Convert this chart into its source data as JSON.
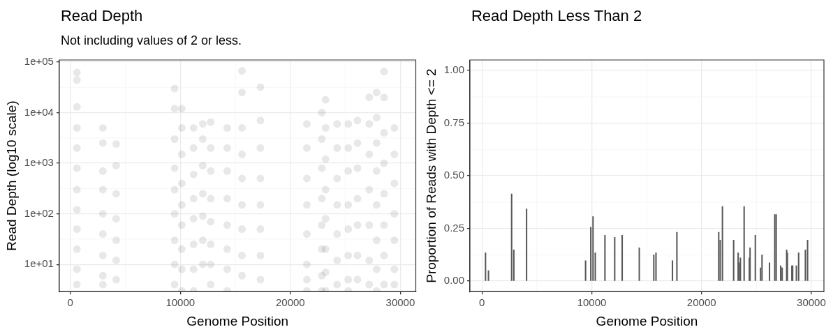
{
  "chart_data": [
    {
      "type": "scatter",
      "title": "Read Depth",
      "subtitle": "Not including values of 2 or less.",
      "xlabel": "Genome Position",
      "ylabel": "Read Depth (log10 scale)",
      "log": "y",
      "grid": true,
      "legend": false,
      "marker": "circle",
      "xlim": [
        -1000,
        31400
      ],
      "xticks": [
        0,
        10000,
        20000,
        30000
      ],
      "ylim": [
        2.9,
        110000
      ],
      "yticks": [
        {
          "value": 10,
          "label": "1e+01"
        },
        {
          "value": 100,
          "label": "1e+02"
        },
        {
          "value": 1000,
          "label": "1e+03"
        },
        {
          "value": 10000,
          "label": "1e+04"
        },
        {
          "value": 100000,
          "label": "1e+05"
        }
      ],
      "series": [
        {
          "color": "#000000",
          "x": [
            600,
            600,
            600,
            600,
            600,
            600,
            600,
            600,
            600,
            600,
            600,
            600,
            2960,
            2960,
            2960,
            2960,
            2960,
            2960,
            2960,
            2960,
            2960,
            4170,
            4170,
            4170,
            4170,
            4170,
            4170,
            4170,
            9480,
            9480,
            9480,
            9480,
            9480,
            9480,
            9480,
            9480,
            9480,
            10130,
            10130,
            10130,
            10130,
            10130,
            10130,
            10130,
            10130,
            10130,
            11200,
            11200,
            11200,
            11200,
            11200,
            11200,
            11200,
            11200,
            12040,
            12040,
            12040,
            12040,
            12040,
            12040,
            12040,
            12760,
            12760,
            12760,
            12760,
            12760,
            12760,
            12760,
            12760,
            14260,
            14260,
            14260,
            14260,
            14260,
            14260,
            14260,
            14260,
            15600,
            15600,
            15600,
            15600,
            15600,
            15600,
            15600,
            15600,
            15600,
            17280,
            17280,
            17280,
            17280,
            17280,
            17280,
            17280,
            17280,
            21500,
            21500,
            21500,
            21500,
            21500,
            21500,
            21500,
            21500,
            22860,
            22860,
            22860,
            22860,
            22860,
            22860,
            22860,
            22860,
            23200,
            23200,
            23200,
            23200,
            23200,
            23200,
            23200,
            23200,
            24250,
            24250,
            24250,
            24250,
            24250,
            24250,
            24250,
            25260,
            25260,
            25260,
            25260,
            25260,
            25260,
            25260,
            25260,
            26100,
            26100,
            26100,
            26100,
            26100,
            26100,
            26100,
            27170,
            27170,
            27170,
            27170,
            27170,
            27170,
            27170,
            27840,
            27840,
            27840,
            27840,
            27840,
            27840,
            27840,
            27840,
            28510,
            28510,
            28510,
            28510,
            28510,
            28510,
            28510,
            28510,
            29450,
            29450,
            29450,
            29450,
            29450,
            29450,
            29450
          ],
          "values": [
            62000,
            44000,
            13000,
            5000,
            2000,
            800,
            300,
            120,
            50,
            20,
            8,
            4,
            5000,
            2500,
            700,
            300,
            100,
            40,
            15,
            6,
            4,
            2400,
            900,
            250,
            80,
            30,
            12,
            5,
            30000,
            12000,
            3000,
            800,
            300,
            100,
            30,
            10,
            4,
            12000,
            5000,
            1500,
            400,
            150,
            60,
            20,
            8,
            3,
            5000,
            2000,
            600,
            200,
            80,
            25,
            8,
            3,
            6000,
            3000,
            900,
            250,
            90,
            30,
            10,
            6500,
            2000,
            700,
            200,
            70,
            25,
            10,
            4,
            5000,
            2000,
            700,
            200,
            60,
            20,
            8,
            3,
            67000,
            25000,
            5000,
            1500,
            500,
            150,
            50,
            15,
            6,
            32000,
            7000,
            2000,
            500,
            150,
            50,
            15,
            5,
            6000,
            2000,
            500,
            150,
            40,
            10,
            5,
            3,
            10000,
            3000,
            800,
            200,
            60,
            20,
            6,
            3,
            18000,
            5000,
            1200,
            300,
            80,
            20,
            7,
            3,
            6000,
            2000,
            500,
            150,
            40,
            12,
            4,
            6000,
            2000,
            700,
            150,
            50,
            15,
            5,
            3,
            7000,
            2500,
            800,
            200,
            60,
            15,
            5,
            20000,
            6000,
            1500,
            300,
            60,
            12,
            4,
            25000,
            8000,
            2500,
            700,
            150,
            30,
            8,
            3,
            65000,
            20000,
            4000,
            1000,
            250,
            60,
            15,
            4,
            5000,
            1500,
            400,
            100,
            30,
            8,
            4
          ]
        }
      ]
    },
    {
      "type": "bar",
      "title": "Read Depth Less Than 2",
      "xlabel": "Genome Position",
      "ylabel": "Proportion of Reads with Depth <= 2",
      "grid": true,
      "legend": false,
      "xlim": [
        -1100,
        31150
      ],
      "xticks": [
        0,
        10000,
        20000,
        30000
      ],
      "ylim": [
        -0.05,
        1.05
      ],
      "yticks": [
        {
          "value": 0,
          "label": "0.00"
        },
        {
          "value": 0.25,
          "label": "0.25"
        },
        {
          "value": 0.5,
          "label": "0.50"
        },
        {
          "value": 0.75,
          "label": "0.75"
        },
        {
          "value": 1,
          "label": "1.00"
        }
      ],
      "series": [
        {
          "color": "#595959",
          "x": [
            320,
            590,
            2700,
            2900,
            4060,
            9435,
            9910,
            10115,
            10320,
            11200,
            12090,
            12770,
            14330,
            15650,
            15850,
            17350,
            17755,
            21565,
            21700,
            21905,
            22925,
            23335,
            23470,
            23540,
            23880,
            24355,
            24420,
            24900,
            25375,
            25510,
            26190,
            26670,
            26800,
            27210,
            27345,
            27755,
            27820,
            28230,
            28300,
            28640,
            28845,
            29460,
            29660
          ],
          "values": [
            0.134,
            0.05,
            0.414,
            0.148,
            0.343,
            0.097,
            0.256,
            0.306,
            0.134,
            0.218,
            0.208,
            0.218,
            0.158,
            0.124,
            0.134,
            0.097,
            0.232,
            0.232,
            0.195,
            0.354,
            0.195,
            0.134,
            0.087,
            0.11,
            0.354,
            0.11,
            0.158,
            0.218,
            0.063,
            0.124,
            0.087,
            0.316,
            0.316,
            0.073,
            0.063,
            0.148,
            0.134,
            0.073,
            0.073,
            0.073,
            0.134,
            0.148,
            0.195
          ]
        }
      ]
    }
  ]
}
